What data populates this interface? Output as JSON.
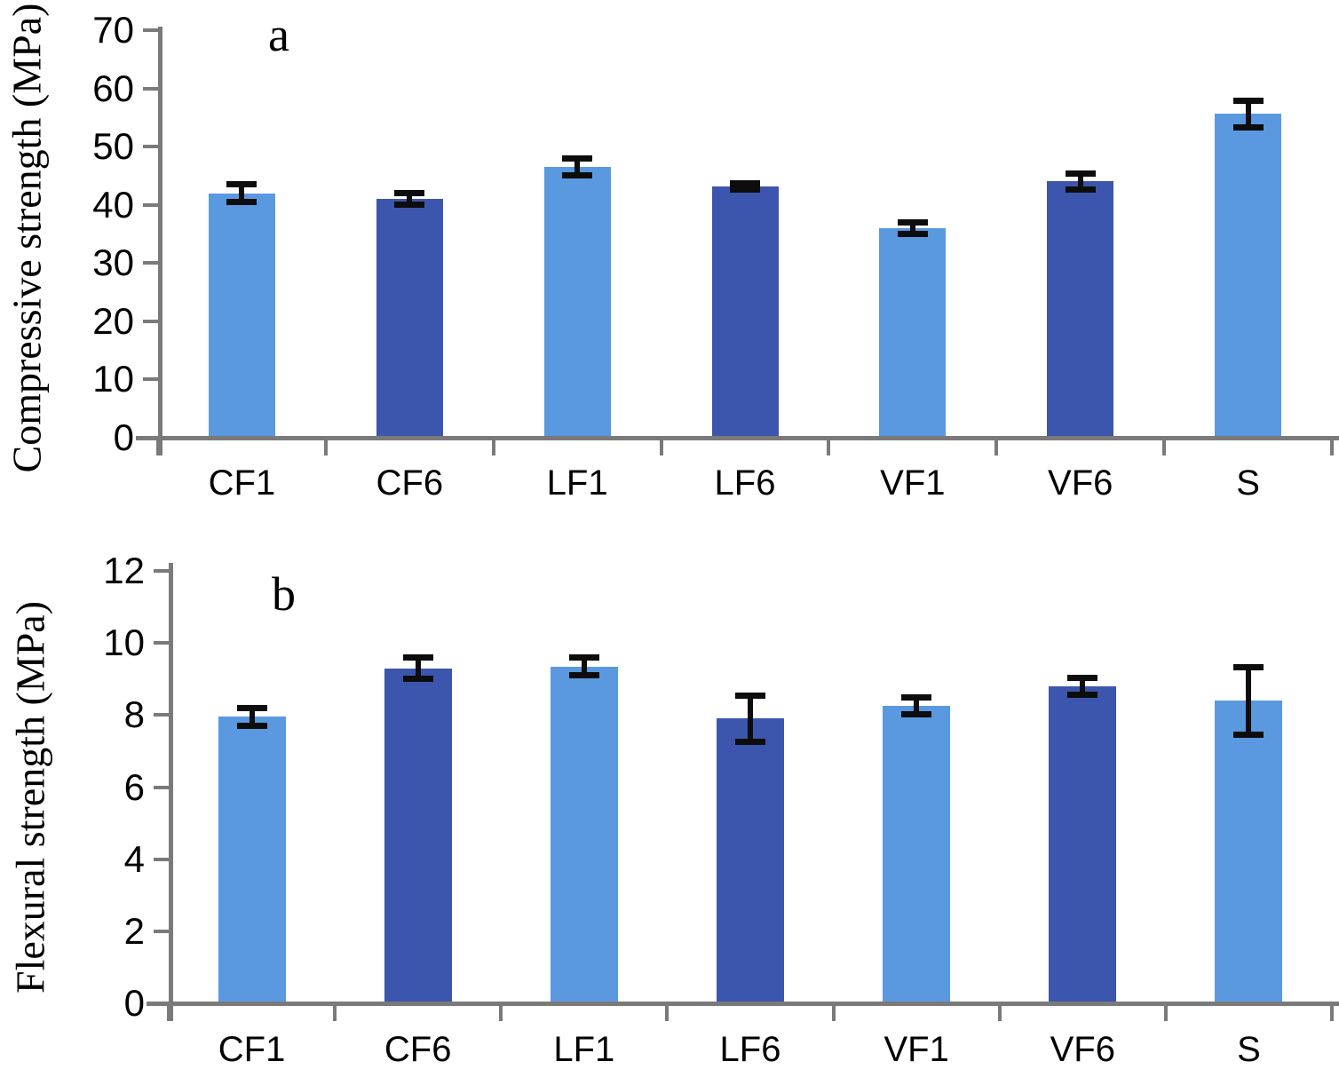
{
  "figure_title": "",
  "colors": {
    "bar_light": "#5A99E0",
    "bar_dark": "#3C56AD",
    "axis": "#7a7a7a",
    "error_bar": "#0d0d0d",
    "text": "#000000"
  },
  "chart_data": [
    {
      "type": "bar",
      "panel_label": "a",
      "ylabel": "Compressive strength (MPa)",
      "xlabel": "",
      "categories": [
        "CF1",
        "CF6",
        "LF1",
        "LF6",
        "VF1",
        "VF6",
        "S"
      ],
      "values": [
        42.0,
        41.0,
        46.5,
        43.1,
        36.0,
        44.0,
        55.6
      ],
      "errors": [
        1.3,
        0.8,
        1.2,
        0.3,
        0.7,
        1.1,
        2.0
      ],
      "ylim": [
        0,
        70
      ],
      "ytick_step": 10,
      "grid": false,
      "legend": "none",
      "bar_color_pattern": [
        "light",
        "dark",
        "light",
        "dark",
        "light",
        "dark",
        "light"
      ]
    },
    {
      "type": "bar",
      "panel_label": "b",
      "ylabel": "Flexural strength (MPa)",
      "xlabel": "",
      "categories": [
        "CF1",
        "CF6",
        "LF1",
        "LF6",
        "VF1",
        "VF6",
        "S"
      ],
      "values": [
        7.95,
        9.3,
        9.35,
        7.9,
        8.25,
        8.8,
        8.4
      ],
      "errors": [
        0.2,
        0.25,
        0.2,
        0.6,
        0.2,
        0.2,
        0.9
      ],
      "ylim": [
        0,
        12
      ],
      "ytick_step": 2,
      "grid": false,
      "legend": "none",
      "bar_color_pattern": [
        "light",
        "dark",
        "light",
        "dark",
        "light",
        "dark",
        "light"
      ]
    }
  ]
}
